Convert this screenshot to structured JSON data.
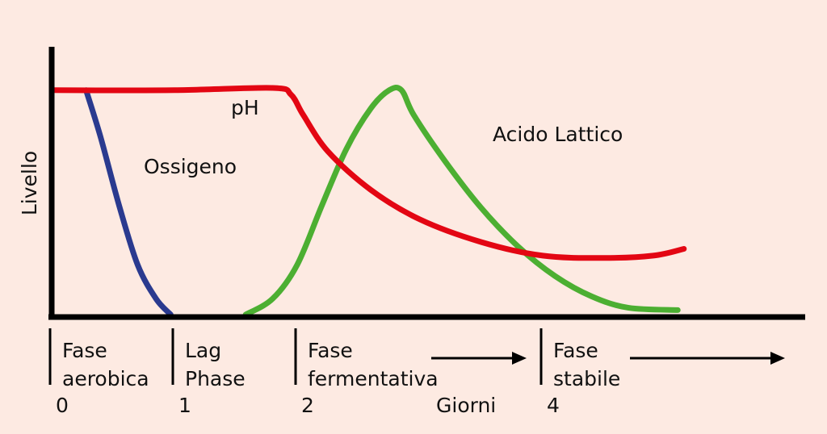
{
  "chart_data": {
    "type": "line",
    "ylabel": "Livello",
    "xlabel": "Giorni",
    "xlim": [
      0,
      5.2
    ],
    "ylim": [
      0,
      1
    ],
    "x_ticks": [
      {
        "value": 0,
        "label": "0"
      },
      {
        "value": 1,
        "label": "1"
      },
      {
        "value": 2,
        "label": "2"
      },
      {
        "value": 4,
        "label": "4"
      }
    ],
    "series": [
      {
        "name": "Ossigeno",
        "color": "#2a3a8f",
        "points": [
          [
            0.28,
            0.99
          ],
          [
            0.4,
            0.78
          ],
          [
            0.55,
            0.48
          ],
          [
            0.7,
            0.22
          ],
          [
            0.85,
            0.07
          ],
          [
            0.97,
            0.0
          ]
        ]
      },
      {
        "name": "pH",
        "color": "#e30613",
        "points": [
          [
            0.0,
            0.99
          ],
          [
            1.0,
            0.99
          ],
          [
            1.8,
            1.0
          ],
          [
            1.95,
            0.97
          ],
          [
            2.05,
            0.88
          ],
          [
            2.25,
            0.72
          ],
          [
            2.6,
            0.55
          ],
          [
            3.0,
            0.42
          ],
          [
            3.5,
            0.32
          ],
          [
            4.0,
            0.26
          ],
          [
            4.5,
            0.25
          ],
          [
            4.9,
            0.26
          ],
          [
            5.15,
            0.29
          ]
        ]
      },
      {
        "name": "Acido Lattico",
        "color": "#4caf32",
        "points": [
          [
            1.58,
            0.0
          ],
          [
            1.8,
            0.07
          ],
          [
            2.0,
            0.22
          ],
          [
            2.2,
            0.48
          ],
          [
            2.4,
            0.73
          ],
          [
            2.6,
            0.91
          ],
          [
            2.75,
            0.99
          ],
          [
            2.85,
            0.99
          ],
          [
            2.95,
            0.88
          ],
          [
            3.2,
            0.68
          ],
          [
            3.5,
            0.47
          ],
          [
            3.8,
            0.3
          ],
          [
            4.1,
            0.17
          ],
          [
            4.4,
            0.08
          ],
          [
            4.7,
            0.03
          ],
          [
            5.1,
            0.02
          ]
        ]
      }
    ],
    "phases": [
      {
        "start": 0,
        "lines": [
          "Fase",
          "aerobica"
        ],
        "arrow": false
      },
      {
        "start": 1,
        "lines": [
          "Lag",
          "Phase"
        ],
        "arrow": false
      },
      {
        "start": 2,
        "lines": [
          "Fase",
          "fermentativa"
        ],
        "arrow": true
      },
      {
        "start": 4,
        "lines": [
          "Fase",
          "stabile"
        ],
        "arrow": true
      }
    ],
    "legend_placement": "inline labels near curves",
    "grid": false,
    "background": "#fdeae2"
  }
}
